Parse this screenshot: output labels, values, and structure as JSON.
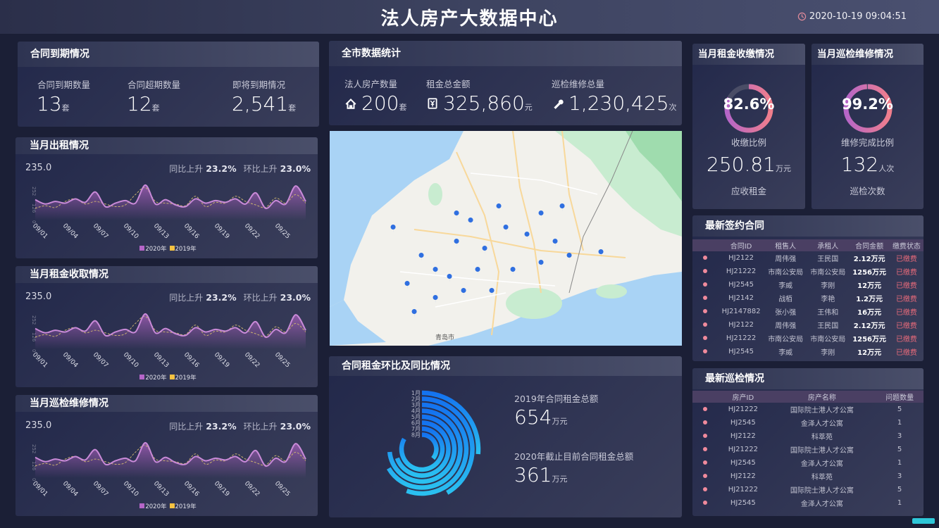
{
  "header": {
    "title": "法人房产大数据中心",
    "datetime": "2020-10-19 09:04:51",
    "clock_icon": "clock-icon"
  },
  "contract_expiry": {
    "title": "合同到期情况",
    "items": [
      {
        "label": "合同到期数量",
        "value": "13",
        "unit": "套"
      },
      {
        "label": "合同超期数量",
        "value": "12",
        "unit": "套"
      },
      {
        "label": "即将到期情况",
        "value": "2,541",
        "unit": "套"
      }
    ]
  },
  "city_stats": {
    "title": "全市数据统计",
    "items": [
      {
        "label": "法人房产数量",
        "value": "200",
        "unit": "套",
        "icon": "home-icon"
      },
      {
        "label": "租金总金额",
        "value": "325,860",
        "unit": "元",
        "icon": "yuan-icon"
      },
      {
        "label": "巡检维修总量",
        "value": "1,230,425",
        "unit": "次",
        "icon": "wrench-icon"
      }
    ]
  },
  "colors": {
    "series_2020": "#b565c8",
    "series_2019": "#f5c242",
    "gauge_start": "#b565c8",
    "gauge_end": "#f07e8c",
    "polar_bar": "#1a8cff",
    "paid_status": "#e86a7a"
  },
  "rent_collect": {
    "title": "当月租金收缴情况",
    "percent": "82.6%",
    "percent_value": 82.6,
    "ratio_label": "收缴比例",
    "value": "250.81",
    "unit": "万元",
    "value_label": "应收租金"
  },
  "repair": {
    "title": "当月巡检维修情况",
    "percent": "99.2%",
    "percent_value": 99.2,
    "ratio_label": "维修完成比例",
    "value": "132",
    "unit": "人次",
    "value_label": "巡检次数"
  },
  "chart_data": [
    {
      "type": "line",
      "title": "当月出租情况",
      "headline": "235.0",
      "yoy_label": "同比上升",
      "yoy": "23.2%",
      "mom_label": "环比上升",
      "mom": "23.0%",
      "yticks": [
        "252",
        "126",
        "0"
      ],
      "ylim": [
        0,
        252
      ],
      "xticks": [
        "09/01",
        "09/04",
        "09/07",
        "09/10",
        "09/13",
        "09/16",
        "09/19",
        "09/22",
        "09/25"
      ],
      "legend": "bottom",
      "series": [
        {
          "name": "2020年",
          "values": [
            120,
            95,
            110,
            100,
            125,
            105,
            165,
            80,
            100,
            115,
            100,
            205,
            95,
            120,
            90,
            80,
            125,
            100,
            115,
            105,
            125,
            95,
            160,
            70,
            115,
            95,
            200,
            110
          ]
        },
        {
          "name": "2019年",
          "values": [
            70,
            85,
            75,
            110,
            125,
            95,
            110,
            95,
            80,
            90,
            150,
            190,
            110,
            100,
            95,
            85,
            140,
            80,
            105,
            100,
            140,
            110,
            90,
            75,
            130,
            100,
            150,
            100
          ]
        }
      ]
    },
    {
      "type": "line",
      "title": "当月租金收取情况",
      "headline": "235.0",
      "yoy_label": "同比上升",
      "yoy": "23.2%",
      "mom_label": "环比上升",
      "mom": "23.0%",
      "yticks": [
        "252",
        "126",
        "0"
      ],
      "ylim": [
        0,
        252
      ],
      "xticks": [
        "09/01",
        "09/04",
        "09/07",
        "09/10",
        "09/13",
        "09/16",
        "09/19",
        "09/22",
        "09/25"
      ],
      "legend": "bottom",
      "series": [
        {
          "name": "2020年",
          "values": [
            120,
            95,
            110,
            100,
            125,
            105,
            165,
            80,
            100,
            115,
            100,
            205,
            95,
            120,
            90,
            80,
            125,
            100,
            115,
            105,
            125,
            95,
            160,
            70,
            115,
            95,
            200,
            110
          ]
        },
        {
          "name": "2019年",
          "values": [
            70,
            85,
            75,
            110,
            125,
            95,
            110,
            95,
            80,
            90,
            150,
            190,
            110,
            100,
            95,
            85,
            140,
            80,
            105,
            100,
            140,
            110,
            90,
            75,
            130,
            100,
            150,
            100
          ]
        }
      ]
    },
    {
      "type": "line",
      "title": "当月巡检维修情况",
      "headline": "235.0",
      "yoy_label": "同比上升",
      "yoy": "23.2%",
      "mom_label": "环比上升",
      "mom": "23.0%",
      "yticks": [
        "252",
        "126",
        "0"
      ],
      "ylim": [
        0,
        252
      ],
      "xticks": [
        "09/01",
        "09/04",
        "09/07",
        "09/10",
        "09/13",
        "09/16",
        "09/19",
        "09/22",
        "09/25"
      ],
      "legend": "bottom",
      "series": [
        {
          "name": "2020年",
          "values": [
            120,
            95,
            110,
            100,
            125,
            105,
            165,
            80,
            100,
            115,
            100,
            205,
            95,
            120,
            90,
            80,
            125,
            100,
            115,
            105,
            125,
            95,
            160,
            70,
            115,
            95,
            200,
            110
          ]
        },
        {
          "name": "2019年",
          "values": [
            70,
            85,
            75,
            110,
            125,
            95,
            110,
            95,
            80,
            90,
            150,
            190,
            110,
            100,
            95,
            85,
            140,
            80,
            105,
            100,
            140,
            110,
            90,
            75,
            130,
            100,
            150,
            100
          ]
        }
      ]
    },
    {
      "type": "bar",
      "polar": true,
      "title": "合同租金环比及同比情况",
      "categories": [
        "1月",
        "2月",
        "3月",
        "4月",
        "5月",
        "6月",
        "7月",
        "8月"
      ],
      "values": [
        95,
        150,
        200,
        240,
        265,
        250,
        300,
        130
      ],
      "max": 360
    }
  ],
  "rent_summary": {
    "items": [
      {
        "label": "2019年合同租金总额",
        "value": "654",
        "unit": "万元"
      },
      {
        "label": "2020年截止目前合同租金总额",
        "value": "361",
        "unit": "万元"
      }
    ]
  },
  "latest_contracts": {
    "title": "最新签约合同",
    "columns": [
      "合同ID",
      "租售人",
      "承租人",
      "合同金额",
      "缴费状态"
    ],
    "rows": [
      [
        "HJ2122",
        "周伟强",
        "王民国",
        "2.12万元",
        "已缴费"
      ],
      [
        "HJ21222",
        "市南公安局",
        "市南公安局",
        "1256万元",
        "已缴费"
      ],
      [
        "HJ2545",
        "李威",
        "李刚",
        "12万元",
        "已缴费"
      ],
      [
        "HJ2142",
        "战栢",
        "李艳",
        "1.2万元",
        "已缴费"
      ],
      [
        "HJ2147882",
        "张小强",
        "王伟和",
        "16万元",
        "已缴费"
      ],
      [
        "HJ2122",
        "周伟强",
        "王民国",
        "2.12万元",
        "已缴费"
      ],
      [
        "HJ21222",
        "市南公安局",
        "市南公安局",
        "1256万元",
        "已缴费"
      ],
      [
        "HJ2545",
        "李威",
        "李刚",
        "12万元",
        "已缴费"
      ]
    ]
  },
  "latest_inspections": {
    "title": "最新巡检情况",
    "columns": [
      "房产ID",
      "房产名称",
      "问题数量"
    ],
    "rows": [
      [
        "HJ21222",
        "国际院士港人才公寓",
        "5"
      ],
      [
        "HJ2545",
        "金泽人才公寓",
        "1"
      ],
      [
        "HJ2122",
        "科萃苑",
        "3"
      ],
      [
        "HJ21222",
        "国际院士港人才公寓",
        "5"
      ],
      [
        "HJ2545",
        "金泽人才公寓",
        "1"
      ],
      [
        "HJ2122",
        "科萃苑",
        "3"
      ],
      [
        "HJ21222",
        "国际院士港人才公寓",
        "5"
      ],
      [
        "HJ2545",
        "金泽人才公寓",
        "1"
      ]
    ]
  },
  "map": {
    "label": "青岛市"
  }
}
